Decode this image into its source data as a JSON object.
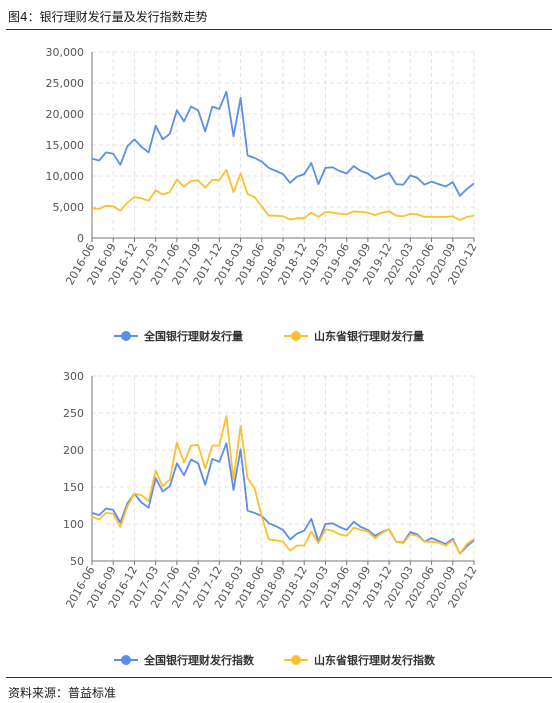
{
  "figure": {
    "title": "图4：银行理财发行量及发行指数走势",
    "source": "资料来源：普益标准"
  },
  "colors": {
    "blue": "#5b8def",
    "yellow": "#fbc02d",
    "grid": "#e3e3e3",
    "axis": "#777777"
  },
  "x_tick_labels": [
    "2016-06",
    "2016-09",
    "2016-12",
    "2017-03",
    "2017-06",
    "2017-09",
    "2017-12",
    "2018-03",
    "2018-06",
    "2018-09",
    "2018-12",
    "2019-03",
    "2019-06",
    "2019-09",
    "2019-12",
    "2020-03",
    "2020-06",
    "2020-09",
    "2020-12"
  ],
  "chart_data": [
    {
      "type": "line",
      "title": "",
      "xlabel": "",
      "ylabel": "",
      "ylim": [
        0,
        30000
      ],
      "yticks": [
        0,
        5000,
        10000,
        15000,
        20000,
        25000,
        30000
      ],
      "ytick_labels": [
        "0",
        "5,000",
        "10,000",
        "15,000",
        "20,000",
        "25,000",
        "30,000"
      ],
      "grid": true,
      "legend": "bottom-center",
      "x": [
        "2016-06",
        "2016-07",
        "2016-08",
        "2016-09",
        "2016-10",
        "2016-11",
        "2016-12",
        "2017-01",
        "2017-02",
        "2017-03",
        "2017-04",
        "2017-05",
        "2017-06",
        "2017-07",
        "2017-08",
        "2017-09",
        "2017-10",
        "2017-11",
        "2017-12",
        "2018-01",
        "2018-02",
        "2018-03",
        "2018-04",
        "2018-05",
        "2018-06",
        "2018-07",
        "2018-08",
        "2018-09",
        "2018-10",
        "2018-11",
        "2018-12",
        "2019-01",
        "2019-02",
        "2019-03",
        "2019-04",
        "2019-05",
        "2019-06",
        "2019-07",
        "2019-08",
        "2019-09",
        "2019-10",
        "2019-11",
        "2019-12",
        "2020-01",
        "2020-02",
        "2020-03",
        "2020-04",
        "2020-05",
        "2020-06",
        "2020-07",
        "2020-08",
        "2020-09",
        "2020-10",
        "2020-11",
        "2020-12"
      ],
      "series": [
        {
          "name": "全国银行理财发行量",
          "color": "#5b8def",
          "values": [
            12800,
            12500,
            13800,
            13600,
            11800,
            14800,
            15900,
            14700,
            13800,
            18100,
            15900,
            16800,
            20600,
            18800,
            21200,
            20600,
            17200,
            21200,
            20800,
            23600,
            16400,
            22600,
            13300,
            12900,
            12300,
            11300,
            10800,
            10300,
            8900,
            9900,
            10300,
            12100,
            8700,
            11300,
            11400,
            10800,
            10400,
            11600,
            10800,
            10400,
            9500,
            10000,
            10500,
            8700,
            8600,
            10100,
            9700,
            8600,
            9100,
            8700,
            8300,
            9000,
            6800,
            7900,
            8800
          ]
        },
        {
          "name": "山东省银行理财发行量",
          "color": "#fbc02d",
          "values": [
            4800,
            4700,
            5200,
            5100,
            4400,
            5700,
            6600,
            6400,
            6000,
            7700,
            7000,
            7400,
            9400,
            8300,
            9200,
            9300,
            8100,
            9400,
            9300,
            11000,
            7400,
            10400,
            7100,
            6600,
            5100,
            3600,
            3600,
            3500,
            3000,
            3200,
            3200,
            4100,
            3400,
            4200,
            4100,
            3900,
            3800,
            4300,
            4200,
            4100,
            3700,
            4100,
            4300,
            3600,
            3500,
            3900,
            3800,
            3400,
            3400,
            3400,
            3400,
            3500,
            2900,
            3400,
            3600
          ]
        }
      ]
    },
    {
      "type": "line",
      "title": "",
      "xlabel": "",
      "ylabel": "",
      "ylim": [
        50,
        300
      ],
      "yticks": [
        50,
        100,
        150,
        200,
        250,
        300
      ],
      "ytick_labels": [
        "50",
        "100",
        "150",
        "200",
        "250",
        "300"
      ],
      "grid": true,
      "legend": "bottom-center",
      "x": [
        "2016-06",
        "2016-07",
        "2016-08",
        "2016-09",
        "2016-10",
        "2016-11",
        "2016-12",
        "2017-01",
        "2017-02",
        "2017-03",
        "2017-04",
        "2017-05",
        "2017-06",
        "2017-07",
        "2017-08",
        "2017-09",
        "2017-10",
        "2017-11",
        "2017-12",
        "2018-01",
        "2018-02",
        "2018-03",
        "2018-04",
        "2018-05",
        "2018-06",
        "2018-07",
        "2018-08",
        "2018-09",
        "2018-10",
        "2018-11",
        "2018-12",
        "2019-01",
        "2019-02",
        "2019-03",
        "2019-04",
        "2019-05",
        "2019-06",
        "2019-07",
        "2019-08",
        "2019-09",
        "2019-10",
        "2019-11",
        "2019-12",
        "2020-01",
        "2020-02",
        "2020-03",
        "2020-04",
        "2020-05",
        "2020-06",
        "2020-07",
        "2020-08",
        "2020-09",
        "2020-10",
        "2020-11",
        "2020-12"
      ],
      "series": [
        {
          "name": "全国银行理财发行指数",
          "color": "#5b8def",
          "values": [
            115,
            112,
            121,
            119,
            102,
            128,
            141,
            129,
            122,
            162,
            144,
            151,
            182,
            166,
            187,
            182,
            153,
            188,
            184,
            209,
            146,
            201,
            118,
            115,
            111,
            101,
            97,
            92,
            79,
            87,
            91,
            107,
            76,
            100,
            101,
            96,
            92,
            103,
            96,
            92,
            84,
            89,
            93,
            76,
            75,
            89,
            86,
            76,
            81,
            77,
            73,
            80,
            60,
            70,
            78
          ]
        },
        {
          "name": "山东省银行理财发行指数",
          "color": "#fbc02d",
          "values": [
            110,
            106,
            115,
            114,
            96,
            124,
            141,
            139,
            131,
            172,
            151,
            160,
            210,
            183,
            206,
            207,
            175,
            206,
            206,
            246,
            160,
            233,
            162,
            148,
            110,
            79,
            78,
            76,
            64,
            71,
            71,
            90,
            74,
            93,
            91,
            86,
            84,
            95,
            92,
            90,
            81,
            88,
            93,
            76,
            74,
            86,
            84,
            76,
            76,
            75,
            71,
            78,
            60,
            73,
            80
          ]
        }
      ]
    }
  ]
}
